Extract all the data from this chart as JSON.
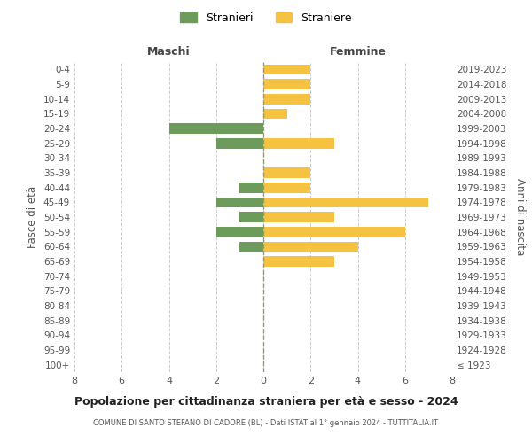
{
  "age_groups": [
    "100+",
    "95-99",
    "90-94",
    "85-89",
    "80-84",
    "75-79",
    "70-74",
    "65-69",
    "60-64",
    "55-59",
    "50-54",
    "45-49",
    "40-44",
    "35-39",
    "30-34",
    "25-29",
    "20-24",
    "15-19",
    "10-14",
    "5-9",
    "0-4"
  ],
  "birth_years": [
    "≤ 1923",
    "1924-1928",
    "1929-1933",
    "1934-1938",
    "1939-1943",
    "1944-1948",
    "1949-1953",
    "1954-1958",
    "1959-1963",
    "1964-1968",
    "1969-1973",
    "1974-1978",
    "1979-1983",
    "1984-1988",
    "1989-1993",
    "1994-1998",
    "1999-2003",
    "2004-2008",
    "2009-2013",
    "2014-2018",
    "2019-2023"
  ],
  "maschi": [
    0,
    0,
    0,
    0,
    0,
    0,
    0,
    0,
    1,
    2,
    1,
    2,
    1,
    0,
    0,
    2,
    4,
    0,
    0,
    0,
    0
  ],
  "femmine": [
    0,
    0,
    0,
    0,
    0,
    0,
    0,
    3,
    4,
    6,
    3,
    7,
    2,
    2,
    0,
    3,
    0,
    1,
    2,
    2,
    2
  ],
  "color_maschi": "#6d9b5b",
  "color_femmine": "#f5c242",
  "title": "Popolazione per cittadinanza straniera per età e sesso - 2024",
  "subtitle": "COMUNE DI SANTO STEFANO DI CADORE (BL) - Dati ISTAT al 1° gennaio 2024 - TUTTITALIA.IT",
  "xlabel_left": "Maschi",
  "xlabel_right": "Femmine",
  "ylabel_left": "Fasce di età",
  "ylabel_right": "Anni di nascita",
  "legend_maschi": "Stranieri",
  "legend_femmine": "Straniere",
  "xlim": 8,
  "background_color": "#ffffff",
  "grid_color": "#cccccc"
}
